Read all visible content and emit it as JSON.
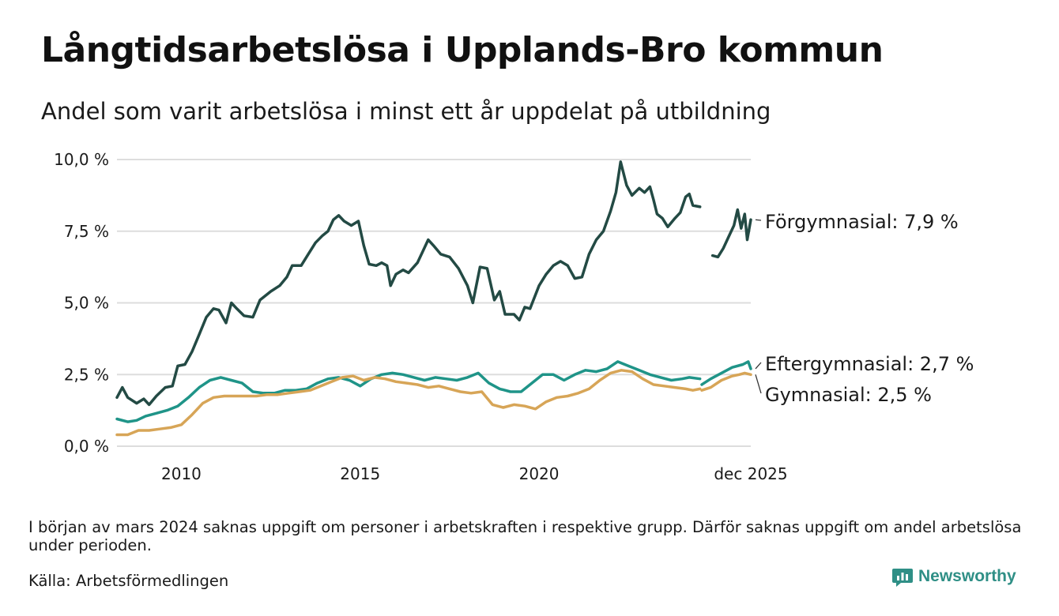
{
  "header": {
    "title": "Långtidsarbetslösa i Upplands-Bro kommun",
    "subtitle": "Andel som varit arbetslösa i minst ett år uppdelat på utbildning"
  },
  "footer": {
    "note": "I början av mars 2024 saknas uppgift om personer i arbetskraften i respektive grupp. Därför saknas uppgift om andel arbetslösa under perioden.",
    "source": "Källa: Arbetsförmedlingen",
    "brand": "Newsworthy"
  },
  "colors": {
    "forgymnasial": "#234a44",
    "eftergymnasial": "#1f9488",
    "gymnasial": "#d7a557",
    "grid": "#dddddd",
    "brand": "#2f8f86"
  },
  "chart_data": {
    "type": "line",
    "title": "Långtidsarbetslösa i Upplands-Bro kommun",
    "xlabel": "",
    "ylabel": "",
    "ylim": [
      0,
      10
    ],
    "y_ticks": [
      0,
      2.5,
      5,
      7.5,
      10
    ],
    "y_tick_labels": [
      "0,0 %",
      "2,5 %",
      "5,0 %",
      "7,5 %",
      "10,0 %"
    ],
    "x_range": [
      2008.2,
      2025.92
    ],
    "x_ticks": [
      2010,
      2015,
      2020,
      2025.92
    ],
    "x_tick_labels": [
      "2010",
      "2015",
      "2020",
      "dec 2025"
    ],
    "gap": [
      2023.9,
      2024.55
    ],
    "series": [
      {
        "name": "Förgymnasial",
        "label": "Förgymnasial: 7,9 %",
        "color_key": "forgymnasial",
        "points": [
          [
            2008.2,
            1.7
          ],
          [
            2008.35,
            2.05
          ],
          [
            2008.5,
            1.7
          ],
          [
            2008.75,
            1.5
          ],
          [
            2008.95,
            1.65
          ],
          [
            2009.1,
            1.45
          ],
          [
            2009.3,
            1.75
          ],
          [
            2009.55,
            2.05
          ],
          [
            2009.75,
            2.1
          ],
          [
            2009.9,
            2.8
          ],
          [
            2010.1,
            2.85
          ],
          [
            2010.3,
            3.3
          ],
          [
            2010.5,
            3.9
          ],
          [
            2010.7,
            4.5
          ],
          [
            2010.9,
            4.8
          ],
          [
            2011.05,
            4.75
          ],
          [
            2011.25,
            4.3
          ],
          [
            2011.4,
            5.0
          ],
          [
            2011.55,
            4.8
          ],
          [
            2011.75,
            4.55
          ],
          [
            2012.0,
            4.5
          ],
          [
            2012.2,
            5.1
          ],
          [
            2012.5,
            5.4
          ],
          [
            2012.75,
            5.6
          ],
          [
            2012.95,
            5.9
          ],
          [
            2013.1,
            6.3
          ],
          [
            2013.35,
            6.3
          ],
          [
            2013.55,
            6.7
          ],
          [
            2013.75,
            7.1
          ],
          [
            2013.95,
            7.35
          ],
          [
            2014.1,
            7.5
          ],
          [
            2014.25,
            7.9
          ],
          [
            2014.4,
            8.05
          ],
          [
            2014.55,
            7.85
          ],
          [
            2014.75,
            7.7
          ],
          [
            2014.95,
            7.85
          ],
          [
            2015.1,
            7.0
          ],
          [
            2015.25,
            6.35
          ],
          [
            2015.45,
            6.3
          ],
          [
            2015.6,
            6.4
          ],
          [
            2015.75,
            6.3
          ],
          [
            2015.85,
            5.6
          ],
          [
            2016.0,
            6.0
          ],
          [
            2016.2,
            6.15
          ],
          [
            2016.35,
            6.05
          ],
          [
            2016.6,
            6.4
          ],
          [
            2016.75,
            6.8
          ],
          [
            2016.9,
            7.2
          ],
          [
            2017.05,
            7.0
          ],
          [
            2017.25,
            6.7
          ],
          [
            2017.5,
            6.6
          ],
          [
            2017.75,
            6.2
          ],
          [
            2018.0,
            5.6
          ],
          [
            2018.15,
            5.0
          ],
          [
            2018.35,
            6.25
          ],
          [
            2018.55,
            6.2
          ],
          [
            2018.75,
            5.1
          ],
          [
            2018.9,
            5.4
          ],
          [
            2019.05,
            4.6
          ],
          [
            2019.3,
            4.6
          ],
          [
            2019.45,
            4.4
          ],
          [
            2019.6,
            4.85
          ],
          [
            2019.75,
            4.8
          ],
          [
            2020.0,
            5.6
          ],
          [
            2020.2,
            6.0
          ],
          [
            2020.4,
            6.3
          ],
          [
            2020.6,
            6.45
          ],
          [
            2020.8,
            6.3
          ],
          [
            2021.0,
            5.85
          ],
          [
            2021.2,
            5.9
          ],
          [
            2021.4,
            6.7
          ],
          [
            2021.6,
            7.2
          ],
          [
            2021.8,
            7.5
          ],
          [
            2022.0,
            8.2
          ],
          [
            2022.15,
            8.85
          ],
          [
            2022.28,
            9.92
          ],
          [
            2022.45,
            9.1
          ],
          [
            2022.6,
            8.75
          ],
          [
            2022.8,
            9.0
          ],
          [
            2022.95,
            8.85
          ],
          [
            2023.1,
            9.05
          ],
          [
            2023.2,
            8.6
          ],
          [
            2023.3,
            8.1
          ],
          [
            2023.45,
            7.95
          ],
          [
            2023.6,
            7.65
          ],
          [
            2023.8,
            7.95
          ],
          [
            2023.95,
            8.15
          ],
          [
            2024.1,
            8.7
          ],
          [
            2024.2,
            8.8
          ],
          [
            2024.3,
            8.4
          ],
          [
            2024.5,
            8.35
          ],
          null,
          [
            2024.85,
            6.65
          ],
          [
            2025.0,
            6.6
          ],
          [
            2025.15,
            6.9
          ],
          [
            2025.3,
            7.3
          ],
          [
            2025.45,
            7.7
          ],
          [
            2025.55,
            8.25
          ],
          [
            2025.65,
            7.6
          ],
          [
            2025.75,
            8.1
          ],
          [
            2025.82,
            7.2
          ],
          [
            2025.92,
            7.9
          ]
        ]
      },
      {
        "name": "Eftergymnasial",
        "label": "Eftergymnasial: 2,7 %",
        "color_key": "eftergymnasial",
        "points": [
          [
            2008.2,
            0.95
          ],
          [
            2008.5,
            0.85
          ],
          [
            2008.75,
            0.9
          ],
          [
            2009.0,
            1.05
          ],
          [
            2009.3,
            1.15
          ],
          [
            2009.6,
            1.25
          ],
          [
            2009.9,
            1.4
          ],
          [
            2010.2,
            1.7
          ],
          [
            2010.5,
            2.05
          ],
          [
            2010.8,
            2.3
          ],
          [
            2011.1,
            2.4
          ],
          [
            2011.4,
            2.3
          ],
          [
            2011.7,
            2.2
          ],
          [
            2012.0,
            1.9
          ],
          [
            2012.3,
            1.85
          ],
          [
            2012.6,
            1.85
          ],
          [
            2012.9,
            1.95
          ],
          [
            2013.2,
            1.95
          ],
          [
            2013.5,
            2.0
          ],
          [
            2013.8,
            2.2
          ],
          [
            2014.1,
            2.35
          ],
          [
            2014.4,
            2.4
          ],
          [
            2014.7,
            2.3
          ],
          [
            2015.0,
            2.1
          ],
          [
            2015.3,
            2.35
          ],
          [
            2015.6,
            2.5
          ],
          [
            2015.9,
            2.55
          ],
          [
            2016.2,
            2.5
          ],
          [
            2016.5,
            2.4
          ],
          [
            2016.8,
            2.3
          ],
          [
            2017.1,
            2.4
          ],
          [
            2017.4,
            2.35
          ],
          [
            2017.7,
            2.3
          ],
          [
            2018.0,
            2.4
          ],
          [
            2018.3,
            2.55
          ],
          [
            2018.6,
            2.2
          ],
          [
            2018.9,
            2.0
          ],
          [
            2019.2,
            1.9
          ],
          [
            2019.5,
            1.9
          ],
          [
            2019.8,
            2.2
          ],
          [
            2020.1,
            2.5
          ],
          [
            2020.4,
            2.5
          ],
          [
            2020.7,
            2.3
          ],
          [
            2021.0,
            2.5
          ],
          [
            2021.3,
            2.65
          ],
          [
            2021.6,
            2.6
          ],
          [
            2021.9,
            2.7
          ],
          [
            2022.2,
            2.95
          ],
          [
            2022.5,
            2.8
          ],
          [
            2022.8,
            2.65
          ],
          [
            2023.1,
            2.5
          ],
          [
            2023.4,
            2.4
          ],
          [
            2023.7,
            2.3
          ],
          [
            2024.0,
            2.35
          ],
          [
            2024.2,
            2.4
          ],
          [
            2024.5,
            2.35
          ],
          null,
          [
            2024.55,
            2.15
          ],
          [
            2024.8,
            2.35
          ],
          [
            2025.1,
            2.55
          ],
          [
            2025.4,
            2.75
          ],
          [
            2025.7,
            2.85
          ],
          [
            2025.85,
            2.95
          ],
          [
            2025.92,
            2.7
          ]
        ]
      },
      {
        "name": "Gymnasial",
        "label": "Gymnasial: 2,5 %",
        "color_key": "gymnasial",
        "points": [
          [
            2008.2,
            0.4
          ],
          [
            2008.5,
            0.4
          ],
          [
            2008.8,
            0.55
          ],
          [
            2009.1,
            0.55
          ],
          [
            2009.4,
            0.6
          ],
          [
            2009.7,
            0.65
          ],
          [
            2010.0,
            0.75
          ],
          [
            2010.3,
            1.1
          ],
          [
            2010.6,
            1.5
          ],
          [
            2010.9,
            1.7
          ],
          [
            2011.2,
            1.75
          ],
          [
            2011.5,
            1.75
          ],
          [
            2011.8,
            1.75
          ],
          [
            2012.1,
            1.75
          ],
          [
            2012.4,
            1.8
          ],
          [
            2012.7,
            1.8
          ],
          [
            2013.0,
            1.85
          ],
          [
            2013.3,
            1.9
          ],
          [
            2013.6,
            1.95
          ],
          [
            2013.9,
            2.1
          ],
          [
            2014.2,
            2.25
          ],
          [
            2014.5,
            2.4
          ],
          [
            2014.8,
            2.45
          ],
          [
            2015.1,
            2.3
          ],
          [
            2015.4,
            2.4
          ],
          [
            2015.7,
            2.35
          ],
          [
            2016.0,
            2.25
          ],
          [
            2016.3,
            2.2
          ],
          [
            2016.6,
            2.15
          ],
          [
            2016.9,
            2.05
          ],
          [
            2017.2,
            2.1
          ],
          [
            2017.5,
            2.0
          ],
          [
            2017.8,
            1.9
          ],
          [
            2018.1,
            1.85
          ],
          [
            2018.4,
            1.9
          ],
          [
            2018.7,
            1.45
          ],
          [
            2019.0,
            1.35
          ],
          [
            2019.3,
            1.45
          ],
          [
            2019.6,
            1.4
          ],
          [
            2019.9,
            1.3
          ],
          [
            2020.2,
            1.55
          ],
          [
            2020.5,
            1.7
          ],
          [
            2020.8,
            1.75
          ],
          [
            2021.1,
            1.85
          ],
          [
            2021.4,
            2.0
          ],
          [
            2021.7,
            2.3
          ],
          [
            2022.0,
            2.55
          ],
          [
            2022.3,
            2.65
          ],
          [
            2022.6,
            2.6
          ],
          [
            2022.9,
            2.35
          ],
          [
            2023.2,
            2.15
          ],
          [
            2023.5,
            2.1
          ],
          [
            2023.8,
            2.05
          ],
          [
            2024.1,
            2.0
          ],
          [
            2024.3,
            1.95
          ],
          [
            2024.5,
            2.0
          ],
          null,
          [
            2024.55,
            1.95
          ],
          [
            2024.8,
            2.05
          ],
          [
            2025.1,
            2.3
          ],
          [
            2025.4,
            2.45
          ],
          [
            2025.6,
            2.5
          ],
          [
            2025.75,
            2.55
          ],
          [
            2025.92,
            2.5
          ]
        ]
      }
    ]
  }
}
